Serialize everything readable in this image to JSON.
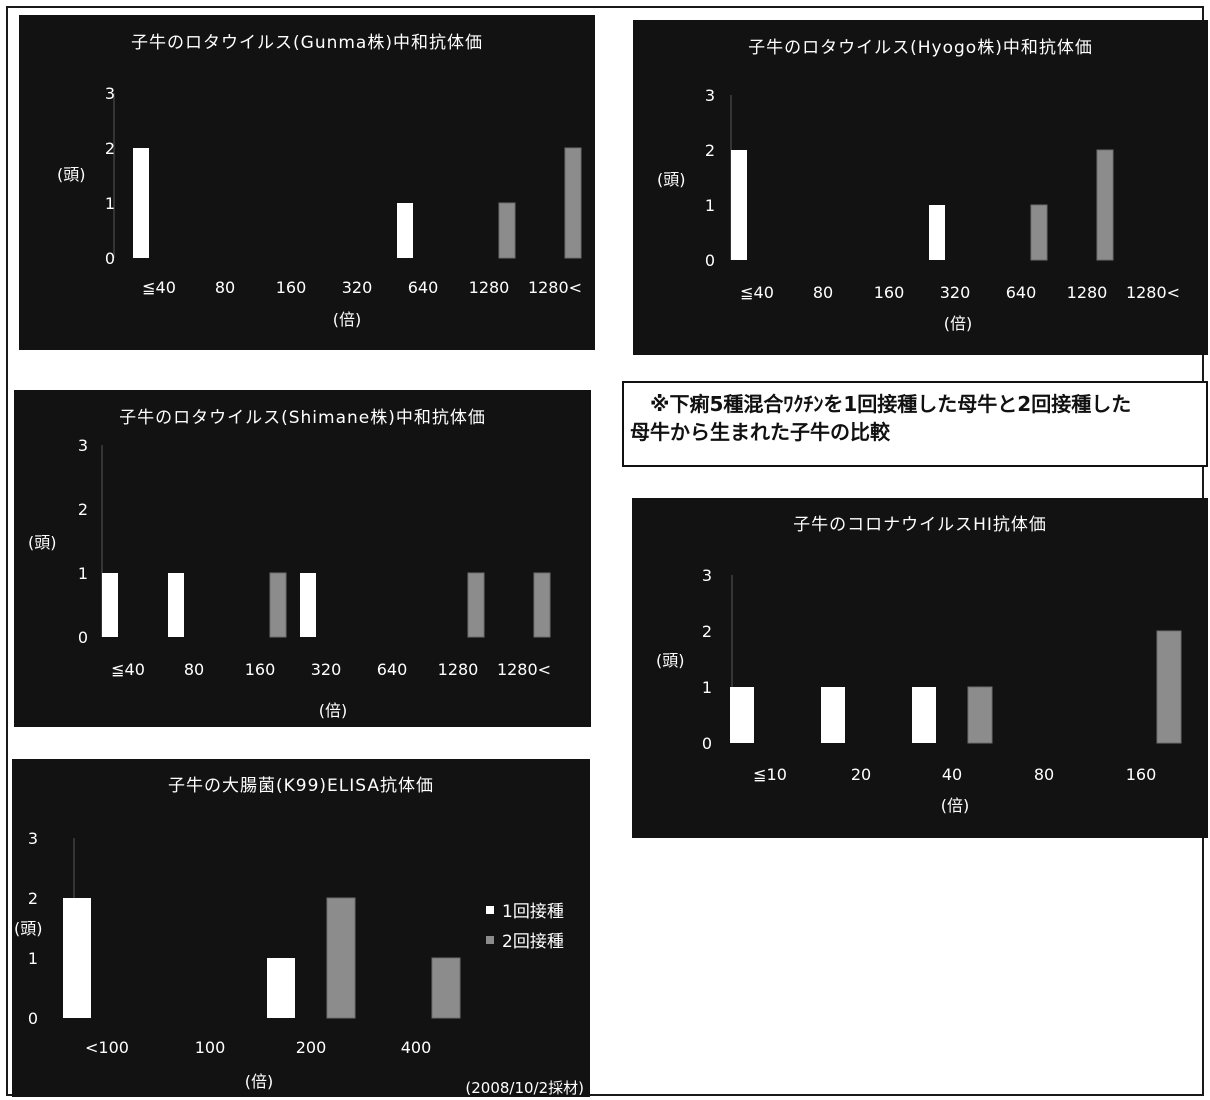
{
  "note": {
    "line1": "※下痢5種混合ﾜｸﾁﾝを1回接種した母牛と2回接種した",
    "line2": "母牛から生まれた子牛の比較"
  },
  "legend": {
    "first": "1回接種",
    "second": "2回接種"
  },
  "colors": {
    "panel_bg": "#121212",
    "once": "#ffffff",
    "twice": "#8c8c8c",
    "text": "#ffffff"
  },
  "chart_data": [
    {
      "id": "gunma",
      "type": "bar",
      "title": "子牛のロタウイルス(Gunma株)中和抗体価",
      "ylabel": "(頭)",
      "xlabel": "(倍)",
      "ylim": [
        0,
        3
      ],
      "yticks": [
        0,
        1,
        2,
        3
      ],
      "categories": [
        "≦40",
        "80",
        "160",
        "320",
        "640",
        "1280",
        "1280<"
      ],
      "series": [
        {
          "name": "1回接種",
          "values": [
            2,
            0,
            0,
            0,
            1,
            0,
            0
          ]
        },
        {
          "name": "2回接種",
          "values": [
            0,
            0,
            0,
            0,
            0,
            1,
            2
          ]
        }
      ]
    },
    {
      "id": "hyogo",
      "type": "bar",
      "title": "子牛のロタウイルス(Hyogo株)中和抗体価",
      "ylabel": "(頭)",
      "xlabel": "(倍)",
      "ylim": [
        0,
        3
      ],
      "yticks": [
        0,
        1,
        2,
        3
      ],
      "categories": [
        "≦40",
        "80",
        "160",
        "320",
        "640",
        "1280",
        "1280<"
      ],
      "series": [
        {
          "name": "1回接種",
          "values": [
            2,
            0,
            0,
            1,
            0,
            0,
            0
          ]
        },
        {
          "name": "2回接種",
          "values": [
            0,
            0,
            0,
            0,
            1,
            2,
            0
          ]
        }
      ]
    },
    {
      "id": "shimane",
      "type": "bar",
      "title": "子牛のロタウイルス(Shimane株)中和抗体価",
      "ylabel": "(頭)",
      "xlabel": "(倍)",
      "ylim": [
        0,
        3
      ],
      "yticks": [
        0,
        1,
        2,
        3
      ],
      "categories": [
        "≦40",
        "80",
        "160",
        "320",
        "640",
        "1280",
        "1280<"
      ],
      "series": [
        {
          "name": "1回接種",
          "values": [
            1,
            1,
            0,
            1,
            0,
            0,
            0
          ]
        },
        {
          "name": "2回接種",
          "values": [
            0,
            0,
            1,
            0,
            0,
            1,
            1
          ]
        }
      ]
    },
    {
      "id": "corona",
      "type": "bar",
      "title": "子牛のコロナウイルスHI抗体価",
      "ylabel": "(頭)",
      "xlabel": "(倍)",
      "ylim": [
        0,
        3
      ],
      "yticks": [
        0,
        1,
        2,
        3
      ],
      "categories": [
        "≦10",
        "20",
        "40",
        "80",
        "160"
      ],
      "series": [
        {
          "name": "1回接種",
          "values": [
            1,
            1,
            1,
            0,
            0
          ]
        },
        {
          "name": "2回接種",
          "values": [
            0,
            0,
            1,
            0,
            2
          ]
        }
      ]
    },
    {
      "id": "ecoli",
      "type": "bar",
      "title": "子牛の大腸菌(K99)ELISA抗体価",
      "ylabel": "(頭)",
      "xlabel": "(倍)",
      "ylim": [
        0,
        3
      ],
      "yticks": [
        0,
        1,
        2,
        3
      ],
      "categories": [
        "<100",
        "100",
        "200",
        "400"
      ],
      "series": [
        {
          "name": "1回接種",
          "values": [
            2,
            0,
            1,
            0
          ]
        },
        {
          "name": "2回接種",
          "values": [
            0,
            0,
            2,
            1
          ]
        }
      ],
      "legend": "right",
      "date_note": "(2008/10/2採材)"
    }
  ]
}
